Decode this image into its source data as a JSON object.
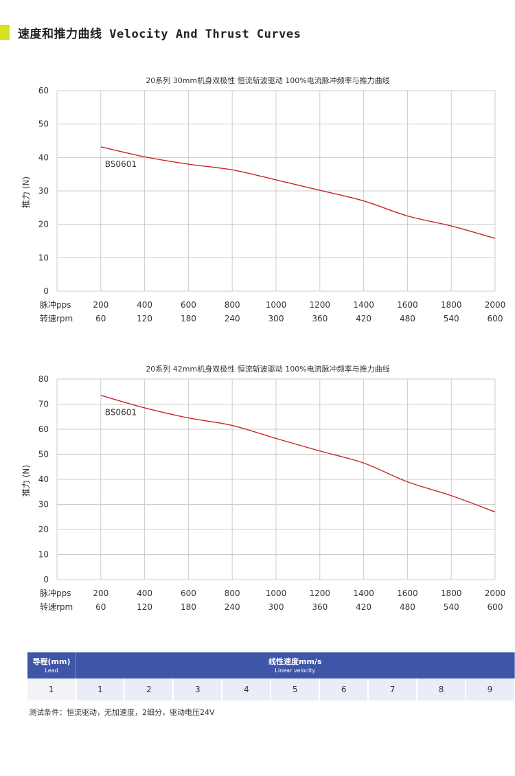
{
  "header": {
    "title": "速度和推力曲线 Velocity And Thrust Curves"
  },
  "charts": [
    {
      "title": "20系列 30mm机身双极性 恒流斩波驱动 100%电流脉冲频率与推力曲线",
      "ylabel": "推力 (N)",
      "series_label": "BS0601",
      "row1_label": "脉冲pps",
      "row2_label": "转速rpm",
      "pps_ticks": [
        "200",
        "400",
        "600",
        "800",
        "1000",
        "1200",
        "1400",
        "1600",
        "1800",
        "2000"
      ],
      "rpm_ticks": [
        "60",
        "120",
        "180",
        "240",
        "300",
        "360",
        "420",
        "480",
        "540",
        "600"
      ],
      "y_ticks": [
        "0",
        "10",
        "20",
        "30",
        "40",
        "50",
        "60"
      ]
    },
    {
      "title": "20系列 42mm机身双极性 恒流斩波驱动 100%电流脉冲频率与推力曲线",
      "ylabel": "推力 (N)",
      "series_label": "BS0601",
      "row1_label": "脉冲pps",
      "row2_label": "转速rpm",
      "pps_ticks": [
        "200",
        "400",
        "600",
        "800",
        "1000",
        "1200",
        "1400",
        "1600",
        "1800",
        "2000"
      ],
      "rpm_ticks": [
        "60",
        "120",
        "180",
        "240",
        "300",
        "360",
        "420",
        "480",
        "540",
        "600"
      ],
      "y_ticks": [
        "0",
        "10",
        "20",
        "30",
        "40",
        "50",
        "60",
        "70",
        "80"
      ]
    }
  ],
  "chart_data": [
    {
      "type": "line",
      "title": "20系列 30mm机身双极性 恒流斩波驱动 100%电流脉冲频率与推力曲线",
      "xlabel": "脉冲pps",
      "ylabel": "推力 (N)",
      "x": [
        200,
        400,
        600,
        800,
        1000,
        1200,
        1400,
        1600,
        1800,
        2000
      ],
      "series": [
        {
          "name": "BS0601",
          "values": [
            43.2,
            40.2,
            38.0,
            36.3,
            33.3,
            30.2,
            27.0,
            22.5,
            19.5,
            15.8
          ]
        }
      ],
      "xlim": [
        0,
        2000
      ],
      "ylim": [
        0,
        60
      ],
      "grid": true,
      "line_color": "#c8232c"
    },
    {
      "type": "line",
      "title": "20系列 42mm机身双极性 恒流斩波驱动 100%电流脉冲频率与推力曲线",
      "xlabel": "脉冲pps",
      "ylabel": "推力 (N)",
      "x": [
        200,
        400,
        600,
        800,
        1000,
        1200,
        1400,
        1600,
        1800,
        2000
      ],
      "series": [
        {
          "name": "BS0601",
          "values": [
            73.5,
            68.5,
            64.5,
            61.5,
            56.3,
            51.3,
            46.5,
            39.0,
            33.5,
            27.0
          ]
        }
      ],
      "xlim": [
        0,
        2000
      ],
      "ylim": [
        0,
        80
      ],
      "grid": true,
      "line_color": "#c8232c"
    }
  ],
  "table": {
    "lead_header": "导程(mm)",
    "lead_header_en": "Lead",
    "velocity_header": "线性速度mm/s",
    "velocity_header_en": "Linear velocity",
    "lead_value": "1",
    "velocities": [
      "1",
      "2",
      "3",
      "4",
      "5",
      "6",
      "7",
      "8",
      "9"
    ],
    "header_color": "#3f55a8"
  },
  "note": "测试条件：恒流驱动，无加速度，2细分，驱动电压24V",
  "colors": {
    "accent": "#d6e21f",
    "line": "#c8232c",
    "grid": "#cccccc"
  }
}
